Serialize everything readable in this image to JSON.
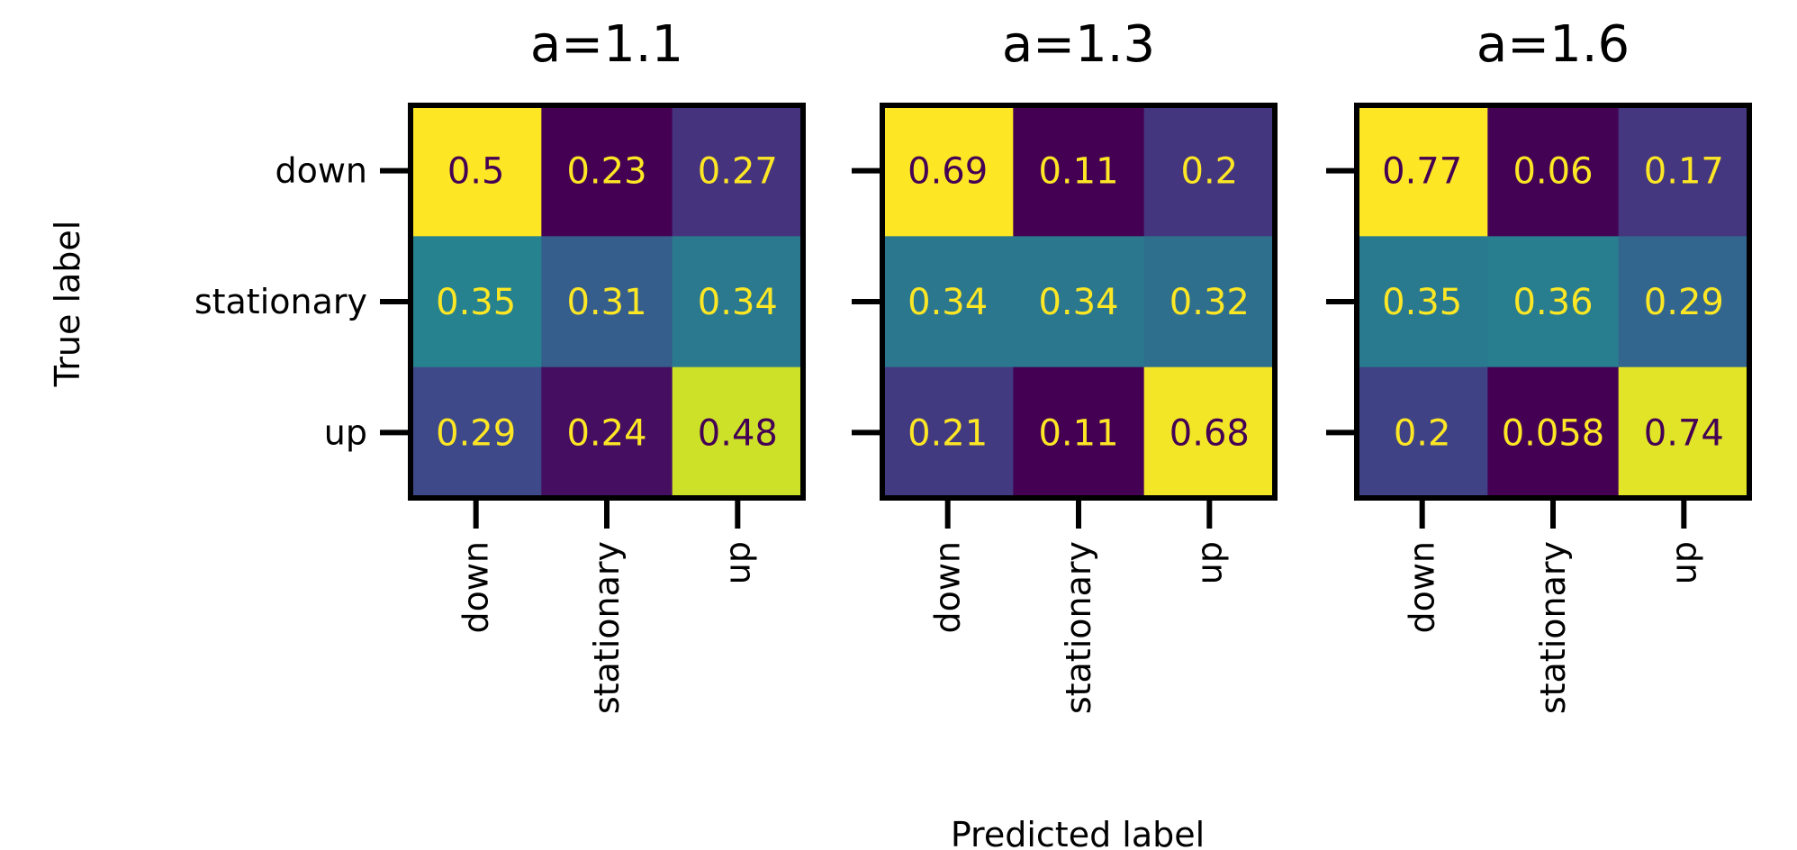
{
  "chart_data": {
    "type": "heatmap",
    "colormap": "viridis",
    "xlabel": "Predicted label",
    "ylabel": "True label",
    "row_labels": [
      "down",
      "stationary",
      "up"
    ],
    "col_labels": [
      "down",
      "stationary",
      "up"
    ],
    "panels": [
      {
        "title": "a=1.1",
        "values": [
          [
            0.5,
            0.23,
            0.27
          ],
          [
            0.35,
            0.31,
            0.34
          ],
          [
            0.29,
            0.24,
            0.48
          ]
        ],
        "labels": [
          [
            "0.5",
            "0.23",
            "0.27"
          ],
          [
            "0.35",
            "0.31",
            "0.34"
          ],
          [
            "0.29",
            "0.24",
            "0.48"
          ]
        ]
      },
      {
        "title": "a=1.3",
        "values": [
          [
            0.69,
            0.11,
            0.2
          ],
          [
            0.34,
            0.34,
            0.32
          ],
          [
            0.21,
            0.11,
            0.68
          ]
        ],
        "labels": [
          [
            "0.69",
            "0.11",
            "0.2"
          ],
          [
            "0.34",
            "0.34",
            "0.32"
          ],
          [
            "0.21",
            "0.11",
            "0.68"
          ]
        ]
      },
      {
        "title": "a=1.6",
        "values": [
          [
            0.77,
            0.06,
            0.17
          ],
          [
            0.35,
            0.36,
            0.29
          ],
          [
            0.2,
            0.058,
            0.74
          ]
        ],
        "labels": [
          [
            "0.77",
            "0.06",
            "0.17"
          ],
          [
            "0.35",
            "0.36",
            "0.29"
          ],
          [
            "0.2",
            "0.058",
            "0.74"
          ]
        ]
      }
    ]
  }
}
